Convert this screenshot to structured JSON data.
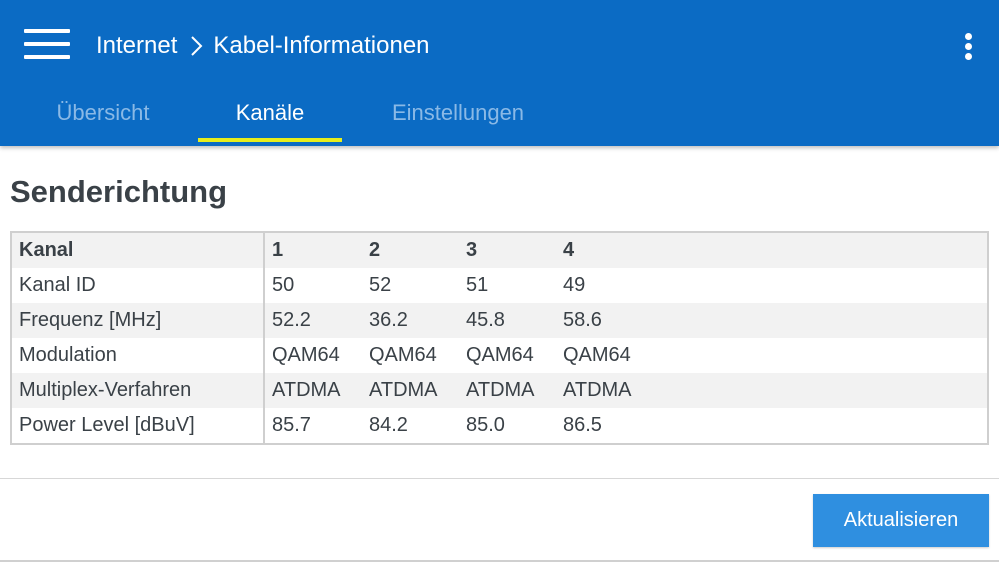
{
  "header": {
    "breadcrumb": [
      "Internet",
      "Kabel-Informationen"
    ],
    "menu_icon": "hamburger-menu-icon",
    "more_icon": "more-vertical-icon",
    "separator_icon": "chevron-right-icon"
  },
  "tabs": [
    {
      "label": "Übersicht",
      "active": false
    },
    {
      "label": "Kanäle",
      "active": true
    },
    {
      "label": "Einstellungen",
      "active": false
    }
  ],
  "section": {
    "title": "Senderichtung"
  },
  "table": {
    "header": [
      "Kanal",
      "1",
      "2",
      "3",
      "4"
    ],
    "rows": [
      [
        "Kanal ID",
        "50",
        "52",
        "51",
        "49"
      ],
      [
        "Frequenz [MHz]",
        "52.2",
        "36.2",
        "45.8",
        "58.6"
      ],
      [
        "Modulation",
        "QAM64",
        "QAM64",
        "QAM64",
        "QAM64"
      ],
      [
        "Multiplex-Verfahren",
        "ATDMA",
        "ATDMA",
        "ATDMA",
        "ATDMA"
      ],
      [
        "Power Level [dBuV]",
        "85.7",
        "84.2",
        "85.0",
        "86.5"
      ]
    ]
  },
  "actions": {
    "refresh_label": "Aktualisieren"
  },
  "colors": {
    "appbar": "#0b6bc4",
    "tab_indicator": "#e8ee1d",
    "button": "#2f8fe0"
  }
}
